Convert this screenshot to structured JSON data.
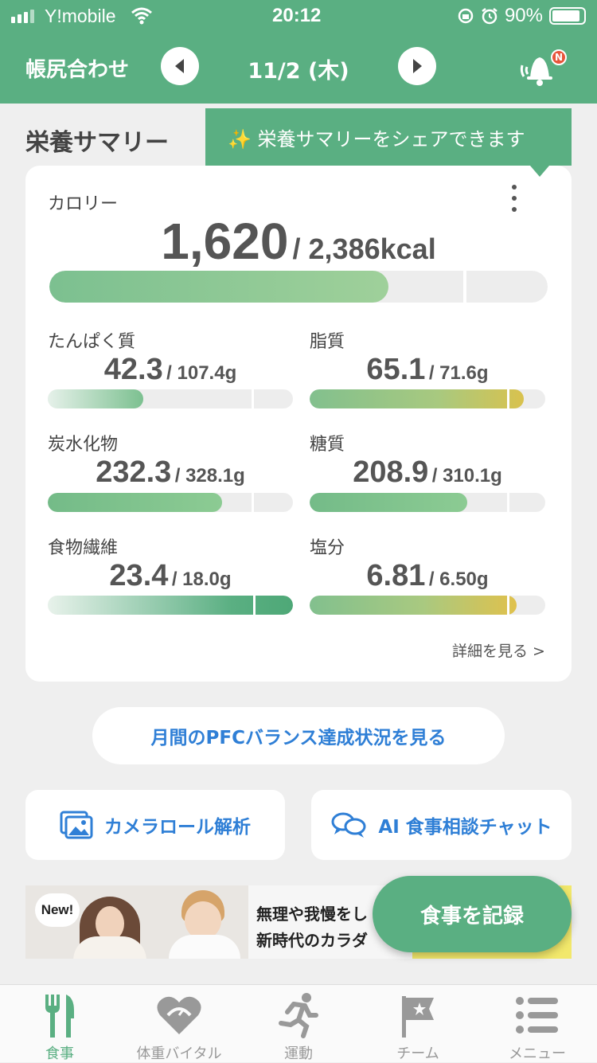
{
  "status_bar": {
    "carrier": "Y!mobile",
    "time": "20:12",
    "battery": "90%"
  },
  "header": {
    "title": "帳尻合わせ",
    "date": "11/2 (木)",
    "badge": "N"
  },
  "summary": {
    "title": "栄養サマリー",
    "tooltip": "✨ 栄養サマリーをシェアできます",
    "calories": {
      "label": "カロリー",
      "value": "1,620",
      "total": "/ 2,386kcal",
      "fraction": 0.68
    },
    "nutrients": [
      {
        "label": "たんぱく質",
        "value": "42.3",
        "total": "/ 107.4g",
        "fraction": 0.39
      },
      {
        "label": "脂質",
        "value": "65.1",
        "total": "/ 71.6g",
        "fraction": 0.91
      },
      {
        "label": "炭水化物",
        "value": "232.3",
        "total": "/ 328.1g",
        "fraction": 0.71
      },
      {
        "label": "糖質",
        "value": "208.9",
        "total": "/ 310.1g",
        "fraction": 0.67
      },
      {
        "label": "食物繊維",
        "value": "23.4",
        "total": "/ 18.0g",
        "fraction": 1.0
      },
      {
        "label": "塩分",
        "value": "6.81",
        "total": "/ 6.50g",
        "fraction": 1.0
      }
    ],
    "detail_link": "詳細を見る >"
  },
  "pfc_button": "月間のPFCバランス達成状況を見る",
  "camera_button": "カメラロール解析",
  "ai_button": "AI 食事相談チャット",
  "banner": {
    "badge": "New!",
    "line1": "無理や我慢をし",
    "line2": "新時代のカラダ"
  },
  "record_button": "食事を記録",
  "tabs": [
    {
      "label": "食事"
    },
    {
      "label": "体重バイタル"
    },
    {
      "label": "運動"
    },
    {
      "label": "チーム"
    },
    {
      "label": "メニュー"
    }
  ],
  "colors": {
    "primary": "#5aaf82",
    "link": "#2f7fd6",
    "warning": "#e0c14c"
  }
}
